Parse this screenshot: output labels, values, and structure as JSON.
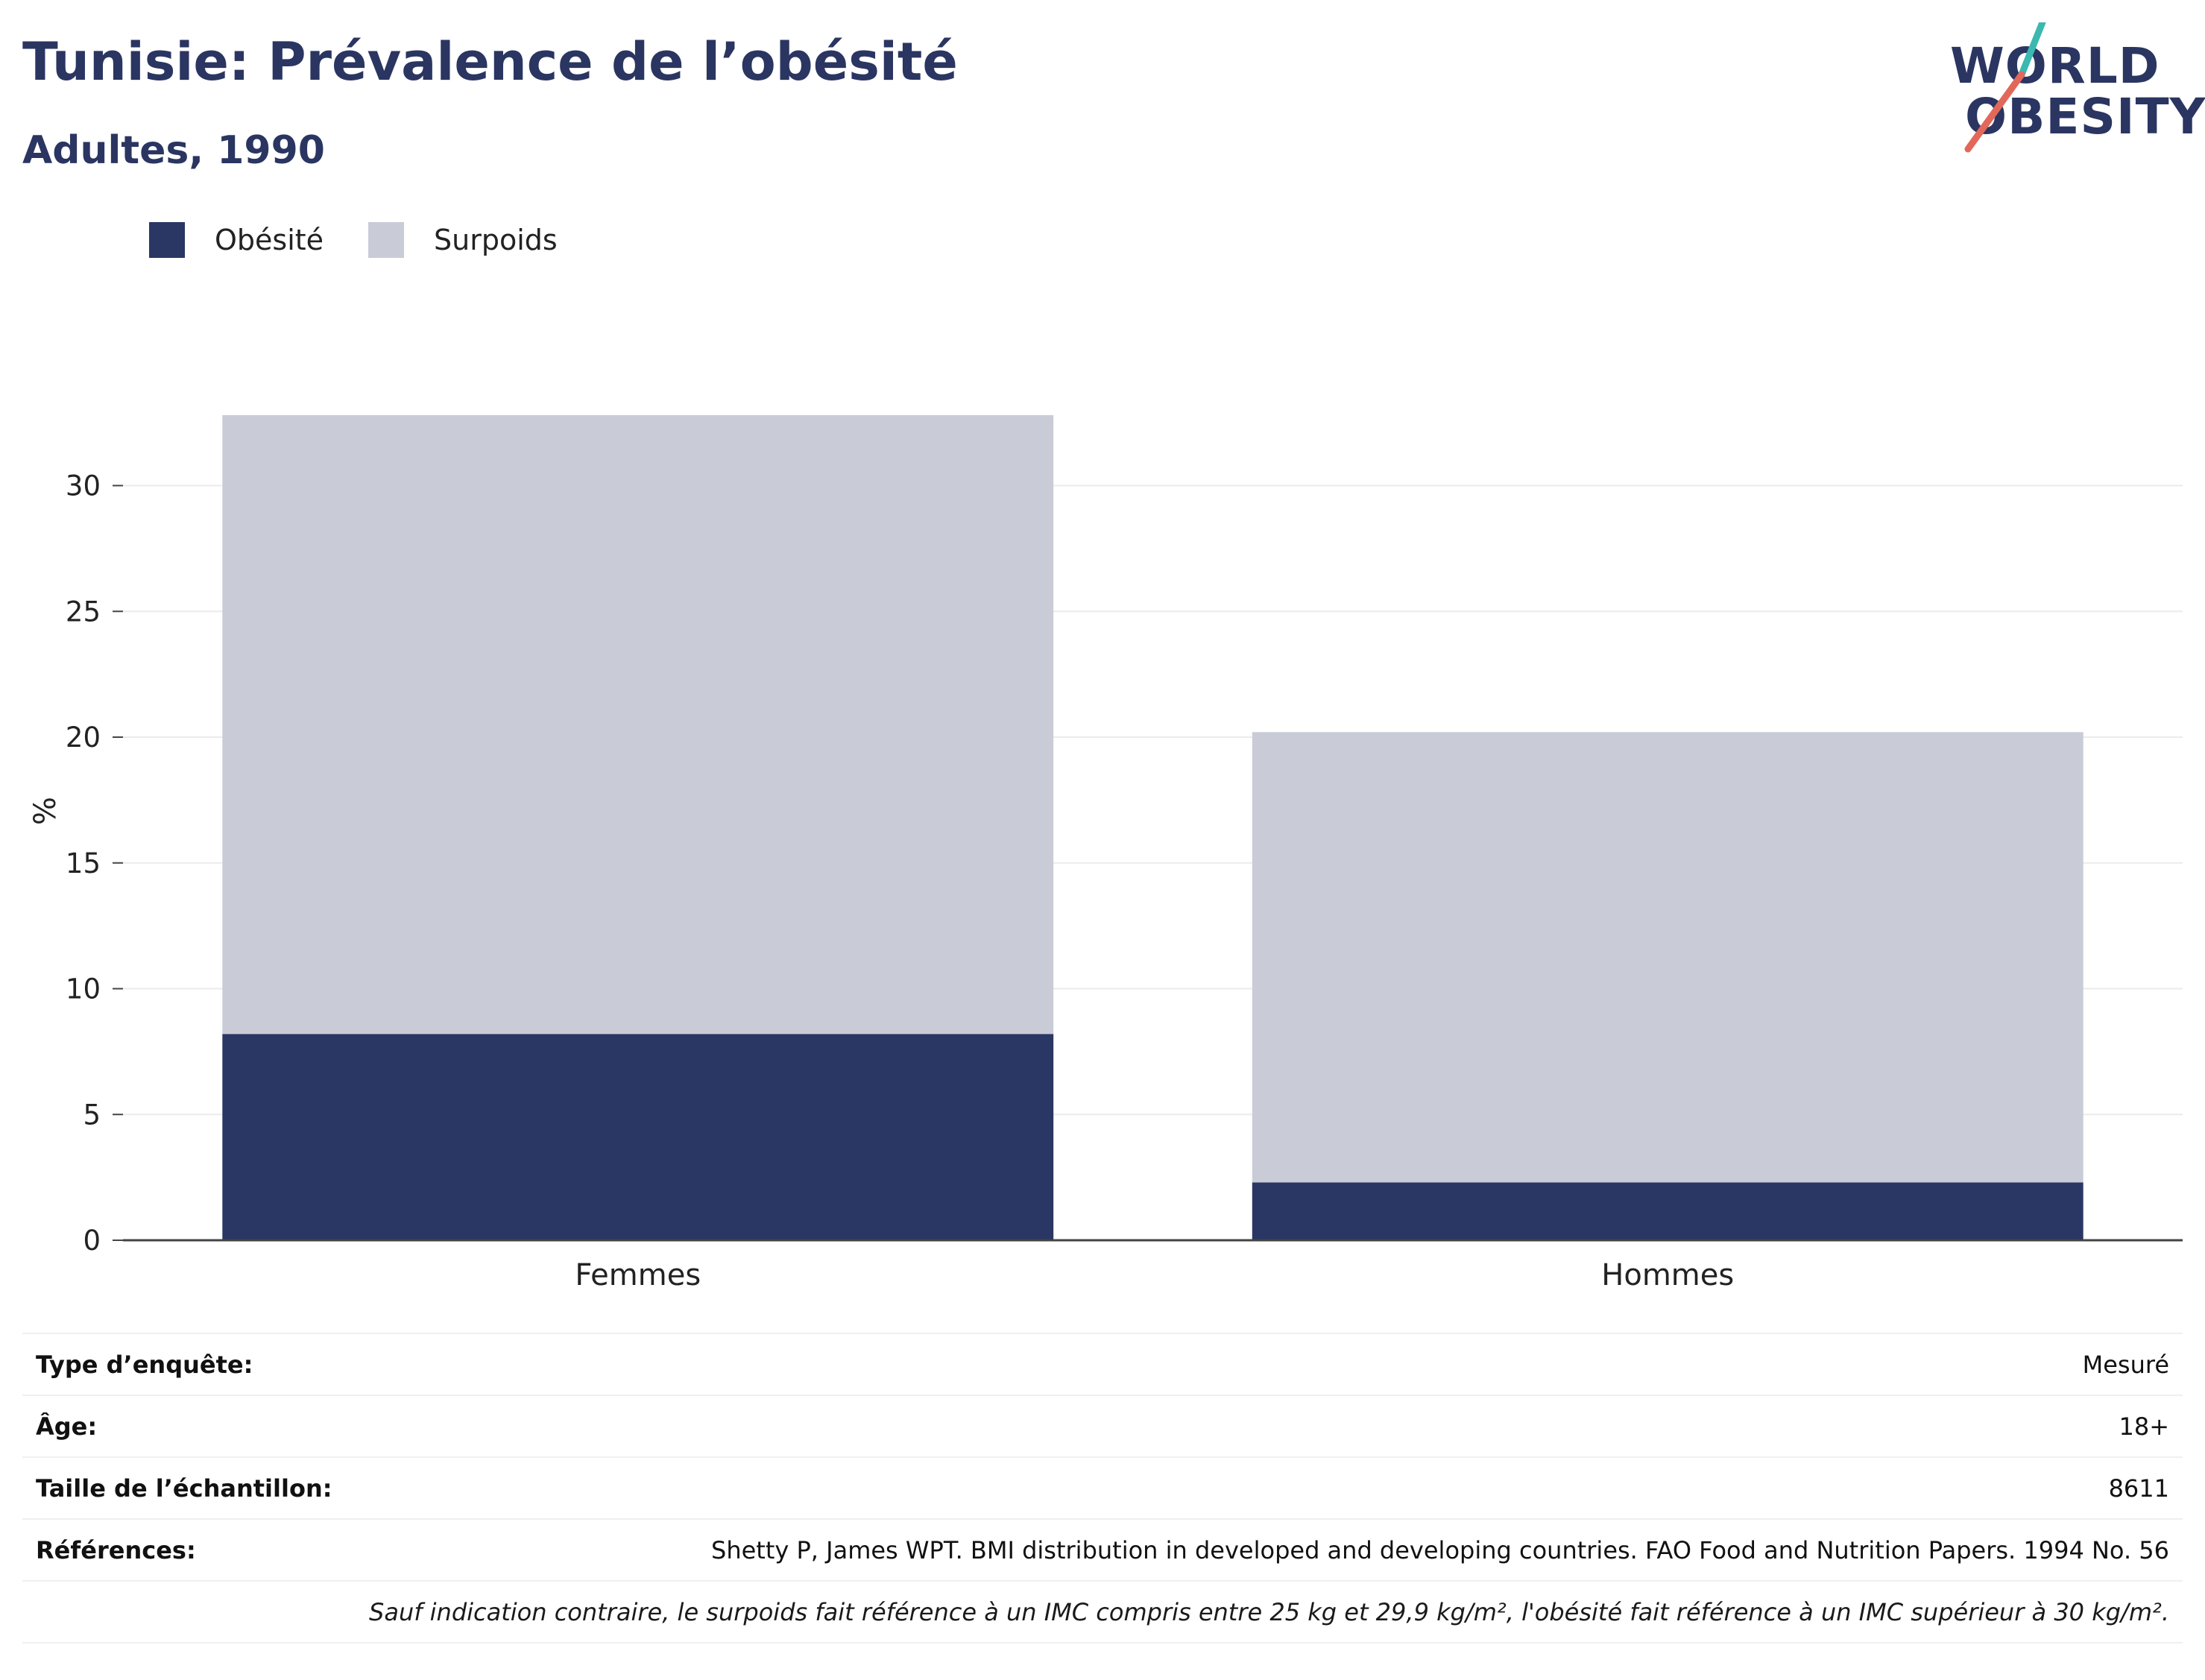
{
  "header": {
    "title": "Tunisie: Prévalence de l’obésité",
    "subtitle": "Adultes, 1990",
    "logo_line1": "WORLD",
    "logo_line2": "OBESITY"
  },
  "legend": [
    {
      "label": "Obésité",
      "color": "#2a3663"
    },
    {
      "label": "Surpoids",
      "color": "#c9cbd7"
    }
  ],
  "chart_data": {
    "type": "bar",
    "stacked": true,
    "categories": [
      "Femmes",
      "Hommes"
    ],
    "series": [
      {
        "name": "Obésité",
        "values": [
          8.2,
          2.3
        ],
        "color": "#2a3663"
      },
      {
        "name": "Surpoids",
        "values": [
          24.6,
          17.9
        ],
        "color": "#c9cbd7"
      }
    ],
    "ylabel": "%",
    "ylim": [
      0,
      33.5
    ],
    "yticks": [
      0,
      5,
      10,
      15,
      20,
      25,
      30
    ],
    "grid": true,
    "legend_position": "top-left"
  },
  "info": {
    "rows": [
      {
        "key": "Type d’enquête:",
        "value": "Mesuré"
      },
      {
        "key": "Âge:",
        "value": "18+"
      },
      {
        "key": "Taille de l’échantillon:",
        "value": "8611"
      },
      {
        "key": "Références:",
        "value": "Shetty P, James WPT. BMI distribution in developed and developing countries. FAO Food and Nutrition Papers. 1994 No. 56"
      }
    ],
    "footnote": "Sauf indication contraire, le surpoids fait référence à un IMC compris entre 25 kg et 29,9 kg/m², l'obésité fait référence à un IMC supérieur à 30 kg/m²."
  }
}
